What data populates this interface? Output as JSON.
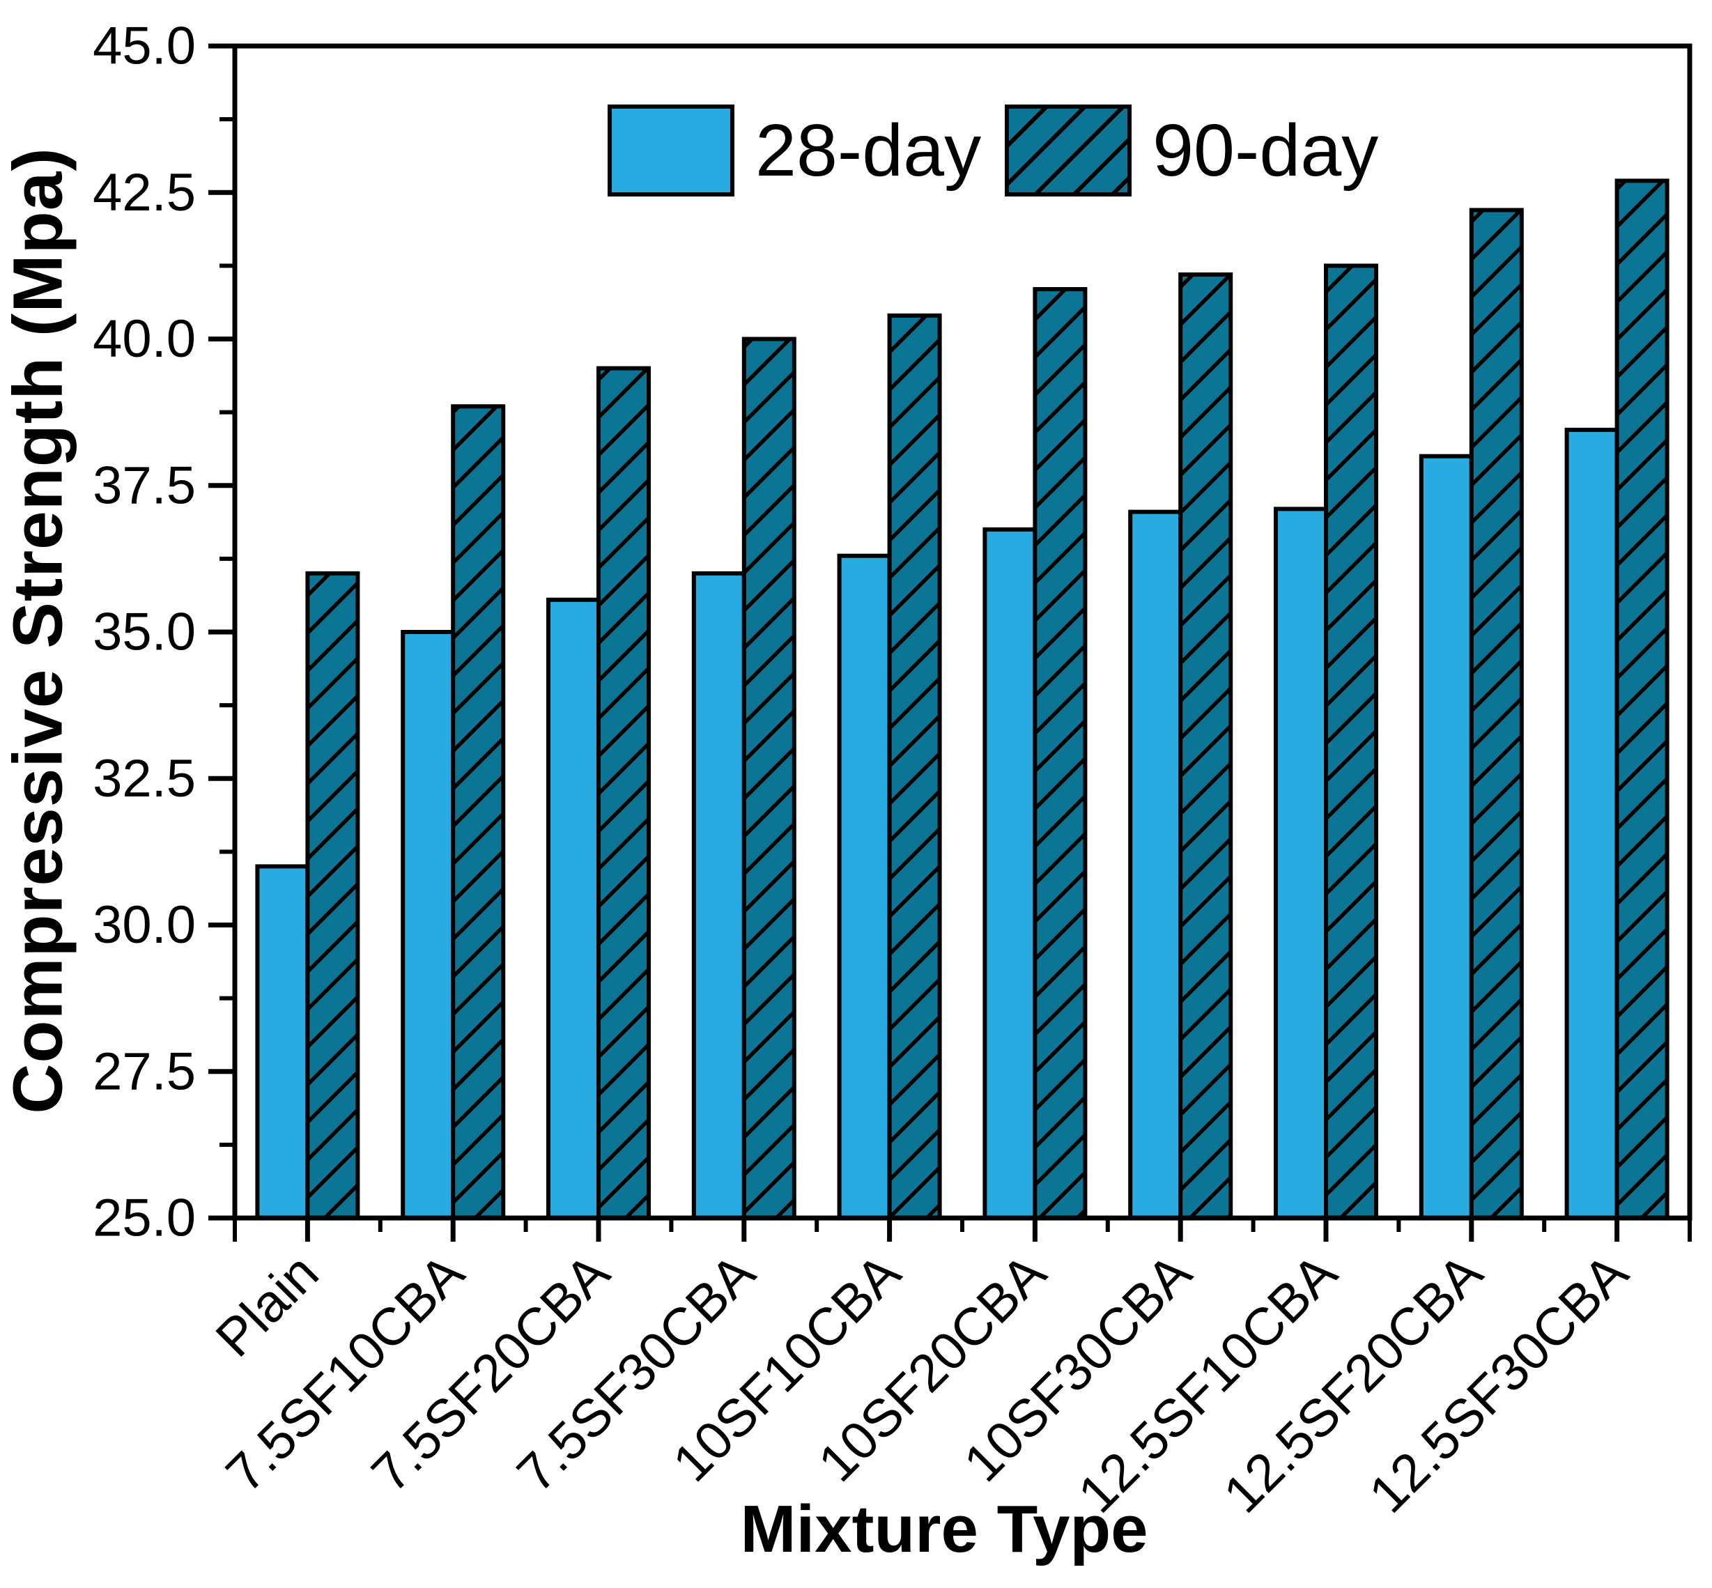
{
  "chart_data": {
    "type": "bar",
    "title": "",
    "xlabel": "Mixture Type",
    "ylabel": "Compressive Strength (Mpa)",
    "categories": [
      "Plain",
      "7.5SF10CBA",
      "7.5SF20CBA",
      "7.5SF30CBA",
      "10SF10CBA",
      "10SF20CBA",
      "10SF30CBA",
      "12.5SF10CBA",
      "12.5SF20CBA",
      "12.5SF30CBA"
    ],
    "series": [
      {
        "name": "28-day",
        "values": [
          31.0,
          35.0,
          35.55,
          36.0,
          36.3,
          36.75,
          37.05,
          37.1,
          38.0,
          38.45
        ],
        "fill": "#29ABE2",
        "hatch": "none"
      },
      {
        "name": "90-day",
        "values": [
          36.0,
          38.85,
          39.5,
          40.0,
          40.4,
          40.85,
          41.1,
          41.25,
          42.2,
          42.7
        ],
        "fill": "#0C7495",
        "hatch": "forward-diagonal"
      }
    ],
    "ylim": [
      25.0,
      45.0
    ],
    "ytick_major_step": 2.5,
    "ytick_minor_step": 1.25,
    "yticks": [
      "25.0",
      "27.5",
      "30.0",
      "32.5",
      "35.0",
      "37.5",
      "40.0",
      "42.5",
      "45.0"
    ],
    "grid": "off",
    "legend_position": "top-center-inside",
    "bar_edge_color": "#000000",
    "axis_color": "#000000",
    "background": "#FFFFFF"
  }
}
